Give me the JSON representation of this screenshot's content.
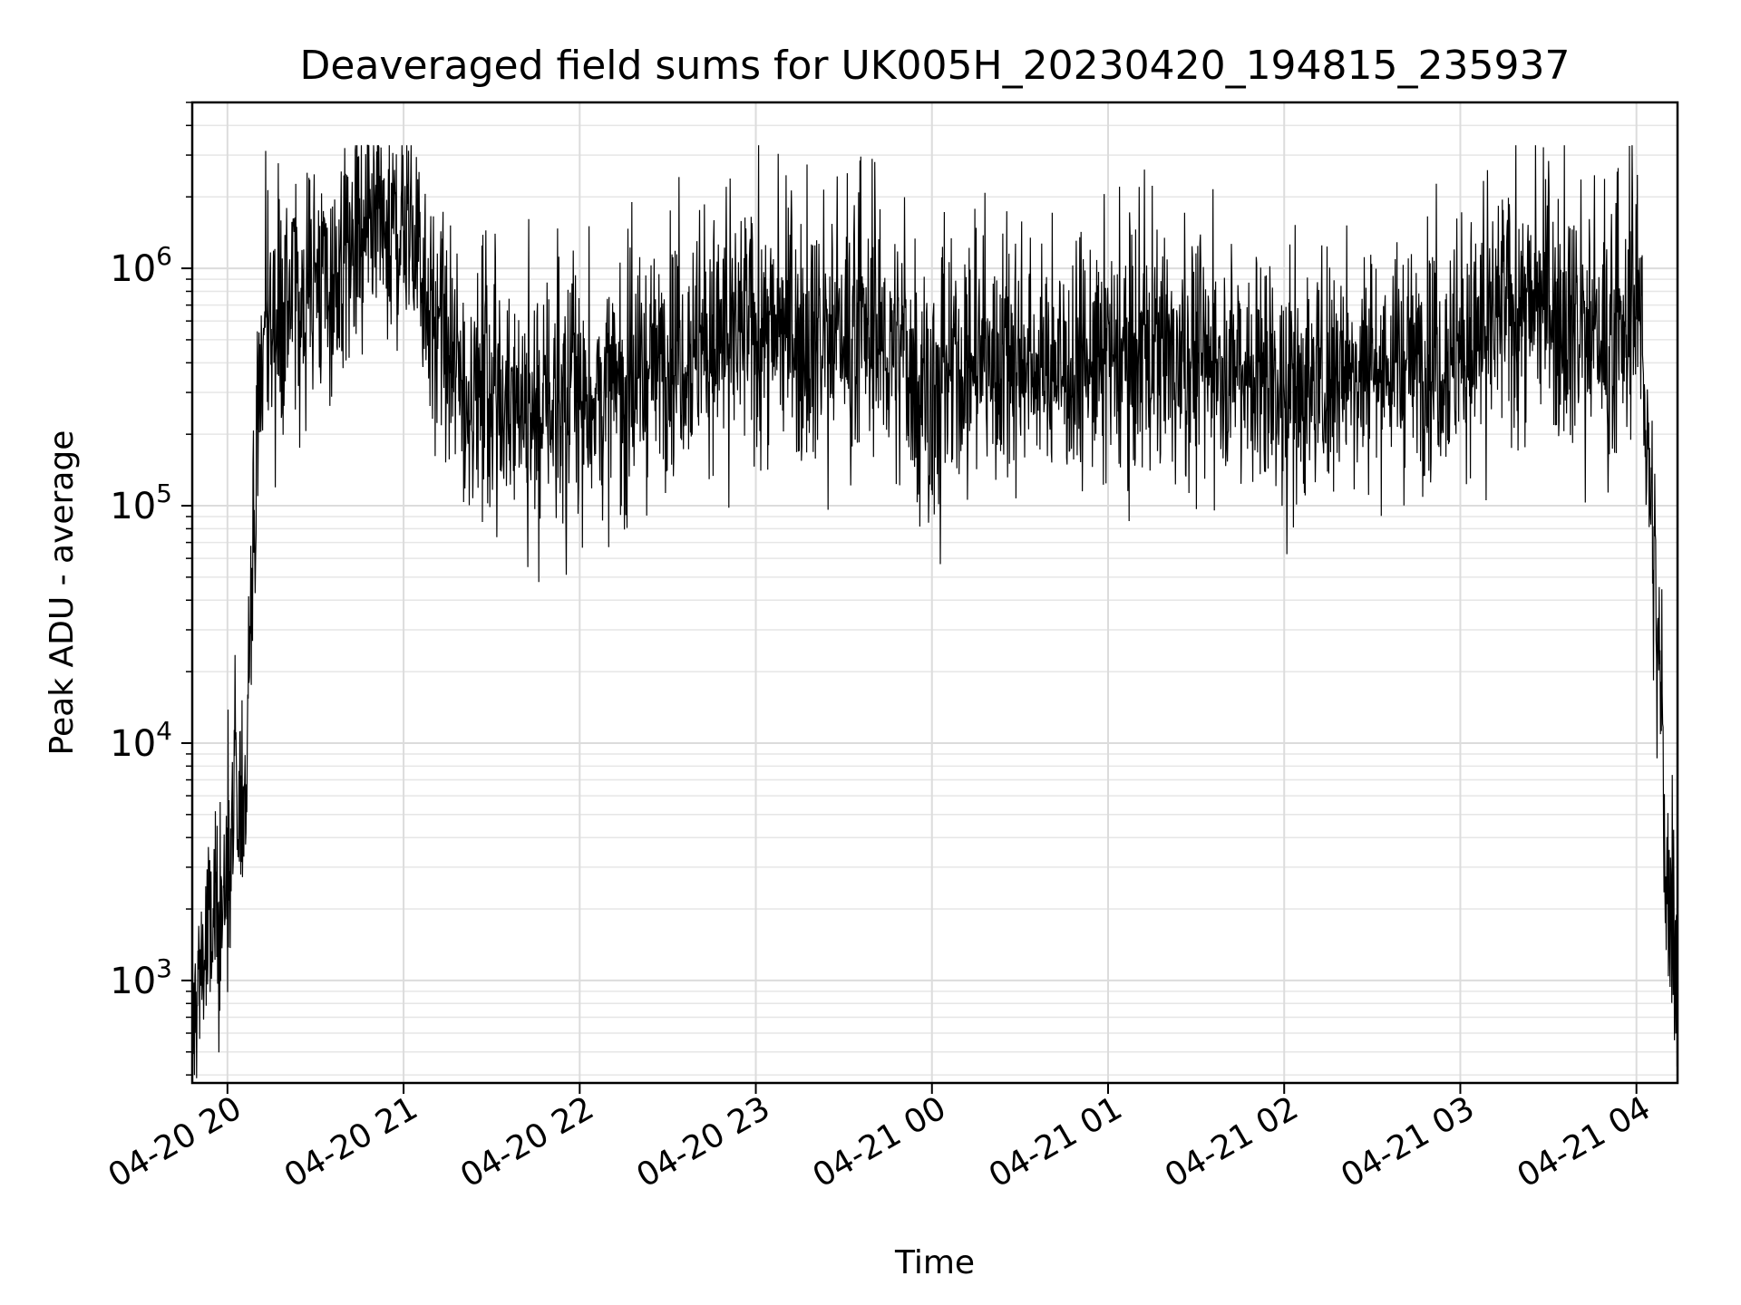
{
  "chart_data": {
    "type": "line",
    "title": "Deaveraged field sums for UK005H_20230420_194815_235937",
    "xlabel": "Time",
    "ylabel": "Peak ADU - average",
    "yscale": "log",
    "grid": true,
    "grid_minor": true,
    "xlim": [
      "2023-04-20 19:48",
      "2023-04-21 04:14"
    ],
    "ylim": [
      370,
      5000000
    ],
    "xticks": [
      {
        "t": "2023-04-20 20:00",
        "label": "04-20 20"
      },
      {
        "t": "2023-04-20 21:00",
        "label": "04-20 21"
      },
      {
        "t": "2023-04-20 22:00",
        "label": "04-20 22"
      },
      {
        "t": "2023-04-20 23:00",
        "label": "04-20 23"
      },
      {
        "t": "2023-04-21 00:00",
        "label": "04-21 00"
      },
      {
        "t": "2023-04-21 01:00",
        "label": "04-21 01"
      },
      {
        "t": "2023-04-21 02:00",
        "label": "04-21 02"
      },
      {
        "t": "2023-04-21 03:00",
        "label": "04-21 03"
      },
      {
        "t": "2023-04-21 04:00",
        "label": "04-21 04"
      }
    ],
    "yticks": [
      {
        "value": 1000,
        "base": "10",
        "exp": "3"
      },
      {
        "value": 10000,
        "base": "10",
        "exp": "4"
      },
      {
        "value": 100000,
        "base": "10",
        "exp": "5"
      },
      {
        "value": 1000000,
        "base": "10",
        "exp": "6"
      }
    ],
    "line_color": "#000000",
    "series": [
      {
        "x": [
          "2023-04-20 19:48",
          "2023-04-20 19:51",
          "2023-04-20 19:54",
          "2023-04-20 19:57",
          "2023-04-20 20:00",
          "2023-04-20 20:02",
          "2023-04-20 20:04",
          "2023-04-20 20:05",
          "2023-04-20 20:06",
          "2023-04-20 20:07",
          "2023-04-20 20:08",
          "2023-04-20 20:09",
          "2023-04-20 20:10",
          "2023-04-20 20:11",
          "2023-04-20 20:12",
          "2023-04-20 20:15",
          "2023-04-20 20:20",
          "2023-04-20 20:25",
          "2023-04-20 20:30",
          "2023-04-20 20:35",
          "2023-04-20 20:40",
          "2023-04-20 20:45",
          "2023-04-20 20:50",
          "2023-04-20 20:55",
          "2023-04-20 21:00",
          "2023-04-20 21:05",
          "2023-04-20 21:10",
          "2023-04-20 21:15",
          "2023-04-20 21:20",
          "2023-04-20 21:30",
          "2023-04-20 21:45",
          "2023-04-20 22:00",
          "2023-04-20 22:15",
          "2023-04-20 22:30",
          "2023-04-20 22:45",
          "2023-04-20 23:00",
          "2023-04-20 23:15",
          "2023-04-20 23:30",
          "2023-04-20 23:45",
          "2023-04-21 00:00",
          "2023-04-21 00:15",
          "2023-04-21 00:30",
          "2023-04-21 00:45",
          "2023-04-21 01:00",
          "2023-04-21 01:15",
          "2023-04-21 01:30",
          "2023-04-21 01:45",
          "2023-04-21 02:00",
          "2023-04-21 02:15",
          "2023-04-21 02:30",
          "2023-04-21 02:45",
          "2023-04-21 03:00",
          "2023-04-21 03:15",
          "2023-04-21 03:30",
          "2023-04-21 03:45",
          "2023-04-21 03:55",
          "2023-04-21 04:00",
          "2023-04-21 04:02",
          "2023-04-21 04:04",
          "2023-04-21 04:06",
          "2023-04-21 04:08",
          "2023-04-21 04:10",
          "2023-04-21 04:12",
          "2023-04-21 04:14"
        ],
        "y": [
          550,
          1200,
          1500,
          1800,
          2500,
          3500,
          5000,
          6000,
          7000,
          15000,
          40000,
          70000,
          150000,
          300000,
          500000,
          600000,
          700000,
          800000,
          1000000,
          800000,
          1000000,
          1100000,
          1300000,
          1400000,
          1500000,
          1300000,
          600000,
          400000,
          300000,
          320000,
          260000,
          280000,
          300000,
          450000,
          500000,
          550000,
          520000,
          540000,
          480000,
          300000,
          400000,
          420000,
          380000,
          400000,
          420000,
          430000,
          420000,
          300000,
          350000,
          380000,
          420000,
          450000,
          650000,
          700000,
          550000,
          450000,
          700000,
          600000,
          150000,
          60000,
          15000,
          3000,
          2000,
          1800
        ],
        "noise_decades": 0.35,
        "spike_high": 3300000,
        "spike_low": 42000
      }
    ]
  }
}
